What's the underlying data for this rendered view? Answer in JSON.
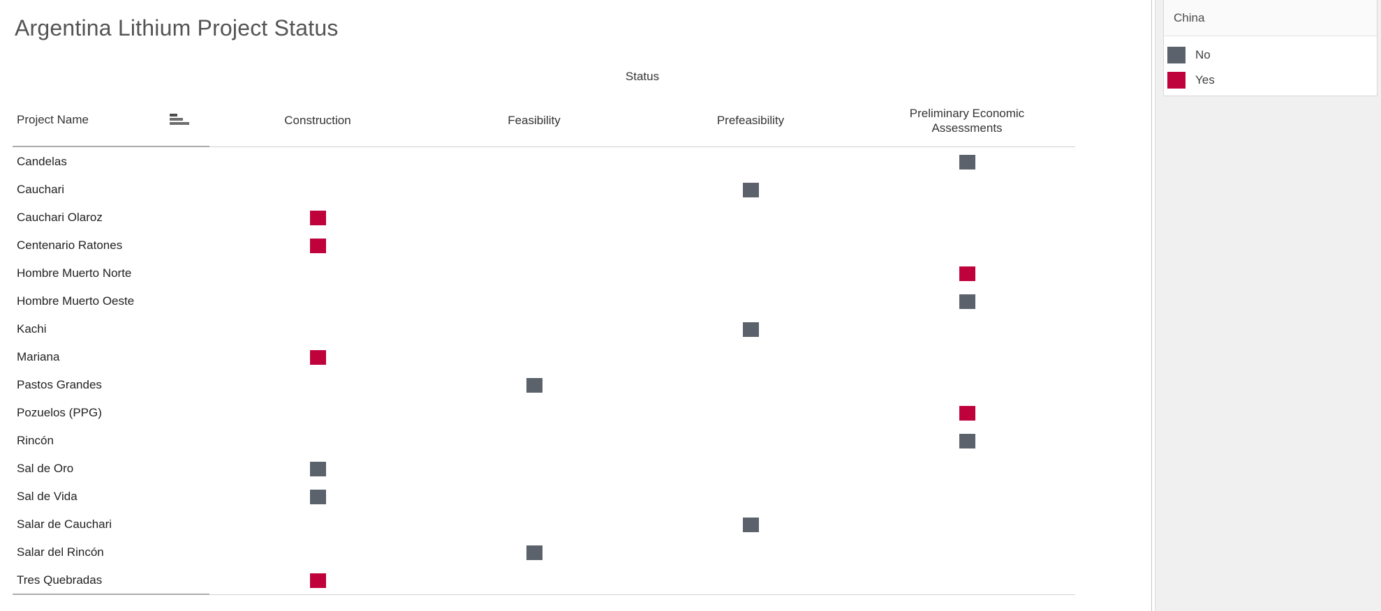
{
  "title": "Argentina Lithium Project Status",
  "row_dimension_header": "Project Name",
  "legend": {
    "title": "China",
    "items": [
      {
        "label": "No",
        "color": "#5b626b"
      },
      {
        "label": "Yes",
        "color": "#c0023c"
      }
    ]
  },
  "chart_data": {
    "type": "heatmap",
    "title": "Argentina Lithium Project Status",
    "x_group_label": "Status",
    "x_categories": [
      "Construction",
      "Feasibility",
      "Prefeasibility",
      "Preliminary Economic Assessments"
    ],
    "y_label": "Project Name",
    "legend_title": "China",
    "mark_shape": "square",
    "rows": [
      {
        "project": "Candelas",
        "status": "Preliminary Economic Assessments",
        "china": "No"
      },
      {
        "project": "Cauchari",
        "status": "Prefeasibility",
        "china": "No"
      },
      {
        "project": "Cauchari Olaroz",
        "status": "Construction",
        "china": "Yes"
      },
      {
        "project": "Centenario Ratones",
        "status": "Construction",
        "china": "Yes"
      },
      {
        "project": "Hombre Muerto Norte",
        "status": "Preliminary Economic Assessments",
        "china": "Yes"
      },
      {
        "project": "Hombre Muerto Oeste",
        "status": "Preliminary Economic Assessments",
        "china": "No"
      },
      {
        "project": "Kachi",
        "status": "Prefeasibility",
        "china": "No"
      },
      {
        "project": "Mariana",
        "status": "Construction",
        "china": "Yes"
      },
      {
        "project": "Pastos Grandes",
        "status": "Feasibility",
        "china": "No"
      },
      {
        "project": "Pozuelos (PPG)",
        "status": "Preliminary Economic Assessments",
        "china": "Yes"
      },
      {
        "project": "Rincón",
        "status": "Preliminary Economic Assessments",
        "china": "No"
      },
      {
        "project": "Sal de Oro",
        "status": "Construction",
        "china": "No"
      },
      {
        "project": "Sal de Vida",
        "status": "Construction",
        "china": "No"
      },
      {
        "project": "Salar de Cauchari",
        "status": "Prefeasibility",
        "china": "No"
      },
      {
        "project": "Salar del Rincón",
        "status": "Feasibility",
        "china": "No"
      },
      {
        "project": "Tres Quebradas",
        "status": "Construction",
        "china": "Yes"
      }
    ]
  }
}
